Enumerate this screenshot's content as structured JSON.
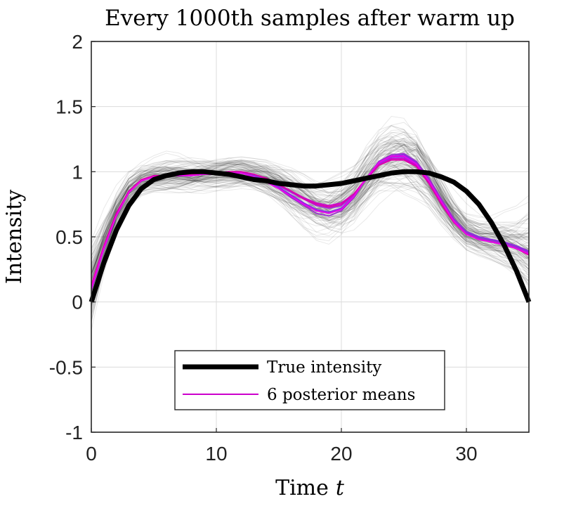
{
  "chart_data": {
    "type": "line",
    "title": "Every 1000th samples after warm up",
    "xlabel": "Time",
    "xlabel_var": "t",
    "ylabel": "Intensity",
    "xlim": [
      0,
      35
    ],
    "ylim": [
      -1,
      2
    ],
    "xticks": [
      0,
      10,
      20,
      30
    ],
    "xtick_labels": [
      "0",
      "10",
      "20",
      "30"
    ],
    "yticks": [
      -1,
      -0.5,
      0,
      0.5,
      1,
      1.5,
      2
    ],
    "ytick_labels": [
      "-1",
      "-0.5",
      "0",
      "0.5",
      "1",
      "1.5",
      "2"
    ],
    "grid": true,
    "legend_position": "bottom-center",
    "series": [
      {
        "name": "True intensity",
        "color": "#000000",
        "x": [
          0,
          1,
          2,
          3,
          4,
          5,
          6,
          7,
          8,
          9,
          10,
          11,
          12,
          13,
          14,
          15,
          16,
          17,
          18,
          19,
          20,
          21,
          22,
          23,
          24,
          25,
          26,
          27,
          28,
          29,
          30,
          31,
          32,
          33,
          34,
          35
        ],
        "values": [
          0.0,
          0.3,
          0.55,
          0.74,
          0.87,
          0.94,
          0.97,
          0.99,
          1.0,
          1.0,
          0.99,
          0.98,
          0.96,
          0.94,
          0.93,
          0.91,
          0.9,
          0.89,
          0.89,
          0.9,
          0.91,
          0.93,
          0.95,
          0.97,
          0.99,
          1.0,
          1.0,
          0.99,
          0.96,
          0.92,
          0.85,
          0.75,
          0.61,
          0.44,
          0.24,
          0.0
        ]
      },
      {
        "name": "6 posterior means",
        "color": "#cc00cc",
        "x": [
          0,
          1,
          2,
          3,
          4,
          5,
          6,
          7,
          8,
          9,
          10,
          11,
          12,
          13,
          14,
          15,
          16,
          17,
          18,
          19,
          20,
          21,
          22,
          23,
          24,
          25,
          26,
          27,
          28,
          29,
          30,
          31,
          32,
          33,
          34,
          35
        ],
        "curves": [
          [
            0.12,
            0.42,
            0.68,
            0.85,
            0.93,
            0.96,
            0.97,
            0.97,
            0.97,
            0.98,
            0.99,
            1.0,
            1.0,
            0.98,
            0.95,
            0.9,
            0.85,
            0.8,
            0.76,
            0.74,
            0.76,
            0.83,
            0.94,
            1.05,
            1.1,
            1.1,
            1.05,
            0.92,
            0.76,
            0.62,
            0.53,
            0.49,
            0.47,
            0.46,
            0.43,
            0.39
          ],
          [
            0.1,
            0.41,
            0.67,
            0.84,
            0.93,
            0.96,
            0.97,
            0.97,
            0.98,
            0.98,
            0.99,
            1.0,
            0.99,
            0.97,
            0.94,
            0.89,
            0.84,
            0.79,
            0.74,
            0.72,
            0.74,
            0.82,
            0.95,
            1.06,
            1.11,
            1.11,
            1.06,
            0.94,
            0.78,
            0.63,
            0.54,
            0.49,
            0.47,
            0.45,
            0.42,
            0.38
          ],
          [
            0.11,
            0.42,
            0.67,
            0.85,
            0.93,
            0.96,
            0.97,
            0.97,
            0.97,
            0.98,
            0.99,
            1.0,
            0.99,
            0.97,
            0.93,
            0.88,
            0.82,
            0.76,
            0.71,
            0.69,
            0.72,
            0.81,
            0.95,
            1.07,
            1.12,
            1.13,
            1.07,
            0.95,
            0.79,
            0.64,
            0.54,
            0.5,
            0.48,
            0.46,
            0.43,
            0.39
          ],
          [
            0.09,
            0.4,
            0.66,
            0.84,
            0.93,
            0.96,
            0.97,
            0.97,
            0.97,
            0.98,
            0.98,
            0.99,
            0.99,
            0.96,
            0.92,
            0.87,
            0.8,
            0.74,
            0.68,
            0.66,
            0.7,
            0.8,
            0.95,
            1.08,
            1.13,
            1.14,
            1.08,
            0.95,
            0.79,
            0.64,
            0.53,
            0.49,
            0.47,
            0.45,
            0.42,
            0.37
          ],
          [
            0.13,
            0.43,
            0.68,
            0.85,
            0.94,
            0.97,
            0.97,
            0.97,
            0.98,
            0.98,
            0.99,
            1.0,
            1.0,
            0.98,
            0.95,
            0.9,
            0.85,
            0.79,
            0.75,
            0.73,
            0.75,
            0.83,
            0.95,
            1.05,
            1.09,
            1.09,
            1.04,
            0.91,
            0.75,
            0.61,
            0.52,
            0.48,
            0.46,
            0.44,
            0.41,
            0.36
          ],
          [
            0.1,
            0.41,
            0.66,
            0.84,
            0.93,
            0.96,
            0.97,
            0.97,
            0.97,
            0.98,
            0.98,
            0.99,
            0.99,
            0.96,
            0.92,
            0.87,
            0.81,
            0.75,
            0.7,
            0.68,
            0.71,
            0.81,
            0.95,
            1.07,
            1.12,
            1.12,
            1.06,
            0.93,
            0.77,
            0.62,
            0.52,
            0.48,
            0.46,
            0.44,
            0.41,
            0.37
          ]
        ]
      },
      {
        "name": "posterior samples",
        "color": "#000000",
        "in_legend": false,
        "x": [
          0,
          1,
          2,
          3,
          4,
          5,
          6,
          7,
          8,
          9,
          10,
          11,
          12,
          13,
          14,
          15,
          16,
          17,
          18,
          19,
          20,
          21,
          22,
          23,
          24,
          25,
          26,
          27,
          28,
          29,
          30,
          31,
          32,
          33,
          34,
          35
        ],
        "mean": [
          0.12,
          0.42,
          0.68,
          0.85,
          0.93,
          0.96,
          0.97,
          0.97,
          0.97,
          0.98,
          0.99,
          1.0,
          1.0,
          0.98,
          0.95,
          0.9,
          0.84,
          0.78,
          0.73,
          0.71,
          0.74,
          0.82,
          0.95,
          1.06,
          1.11,
          1.11,
          1.06,
          0.93,
          0.77,
          0.63,
          0.53,
          0.49,
          0.47,
          0.45,
          0.42,
          0.38
        ],
        "spread": [
          0.3,
          0.2,
          0.14,
          0.12,
          0.11,
          0.11,
          0.12,
          0.12,
          0.12,
          0.12,
          0.12,
          0.13,
          0.13,
          0.13,
          0.14,
          0.15,
          0.17,
          0.18,
          0.19,
          0.2,
          0.2,
          0.2,
          0.21,
          0.22,
          0.24,
          0.25,
          0.24,
          0.2,
          0.17,
          0.15,
          0.14,
          0.14,
          0.15,
          0.17,
          0.2,
          0.3
        ],
        "count": 120
      }
    ]
  }
}
